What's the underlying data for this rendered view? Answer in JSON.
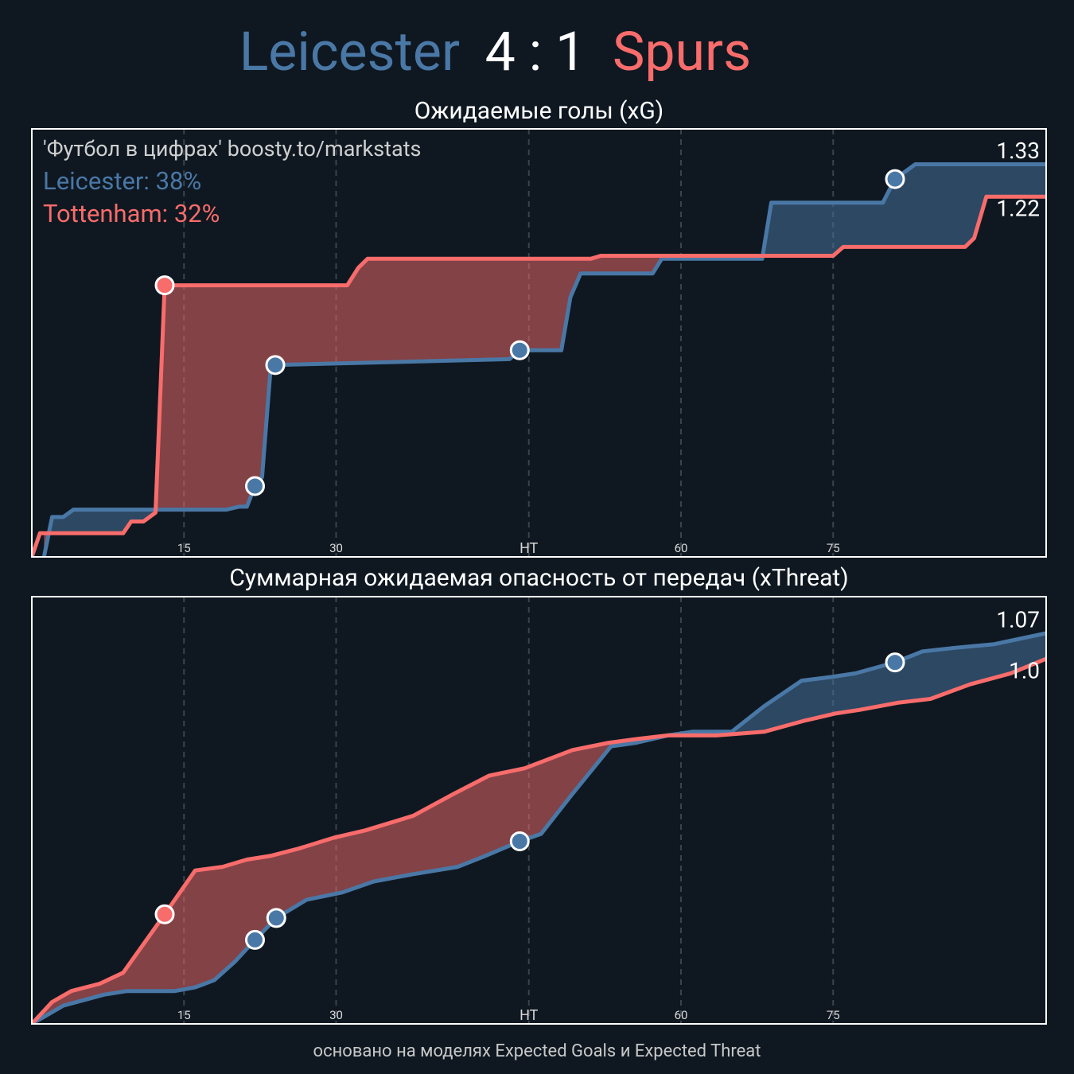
{
  "header": {
    "home": "Leicester",
    "score": "4 : 1",
    "away": "Spurs"
  },
  "footer": "основано на моделях Expected Goals и Expected Threat",
  "chart_data": [
    {
      "type": "line",
      "title": "Ожидаемые голы (xG)",
      "source": "'Футбол в цифрах' boosty.to/markstats",
      "annotations": [
        "Leicester: 38%",
        "Tottenham: 32%"
      ],
      "xlim": [
        0,
        100
      ],
      "ylim": [
        0,
        1.45
      ],
      "xticks": [
        15,
        30,
        {
          "value": 49,
          "label": "HT"
        },
        {
          "value": 64,
          "label": "60"
        },
        {
          "value": 79,
          "label": "75"
        }
      ],
      "grid": true,
      "series": [
        {
          "name": "Leicester",
          "color": "#4a78a6",
          "x": [
            1.2,
            2.0,
            3.1,
            4.1,
            19.2,
            20.4,
            21.2,
            22.0,
            22.7,
            23.5,
            24.0,
            47.1,
            48.1,
            52.2,
            53.1,
            54.1,
            61.2,
            62.1,
            72.0,
            72.9,
            83.9,
            85.1,
            87.1,
            100
          ],
          "values": [
            0,
            0.135,
            0.135,
            0.16,
            0.16,
            0.17,
            0.17,
            0.24,
            0.27,
            0.62,
            0.65,
            0.67,
            0.7,
            0.7,
            0.88,
            0.96,
            0.96,
            1.01,
            1.01,
            1.2,
            1.2,
            1.28,
            1.33,
            1.33
          ],
          "goal_x": [
            22.0,
            24.0,
            48.1,
            85.1
          ],
          "goal_values": [
            0.24,
            0.65,
            0.7,
            1.28
          ]
        },
        {
          "name": "Tottenham",
          "color": "#f86c6b",
          "x": [
            0,
            0.8,
            9.0,
            9.8,
            11.0,
            12.2,
            13.1,
            31.1,
            32.2,
            33.1,
            55.1,
            56.1,
            79.0,
            80.0,
            92.0,
            92.9,
            94.1,
            100
          ],
          "values": [
            0,
            0.08,
            0.08,
            0.12,
            0.12,
            0.15,
            0.92,
            0.92,
            0.98,
            1.01,
            1.01,
            1.02,
            1.02,
            1.05,
            1.05,
            1.08,
            1.22,
            1.22
          ],
          "goal_x": [
            13.1
          ],
          "goal_values": [
            0.92
          ]
        }
      ]
    },
    {
      "type": "line",
      "title": "Суммарная ожидаемая опасность от передач (xThreat)",
      "xlim": [
        0,
        100
      ],
      "ylim": [
        0,
        1.17
      ],
      "xticks": [
        15,
        30,
        {
          "value": 49,
          "label": "HT"
        },
        {
          "value": 64,
          "label": "60"
        },
        {
          "value": 79,
          "label": "75"
        }
      ],
      "grid": true,
      "series": [
        {
          "name": "Leicester",
          "color": "#4a78a6",
          "x": [
            0,
            3.1,
            7.1,
            9.4,
            14.1,
            16.1,
            18.0,
            20.0,
            22.0,
            24.1,
            27.1,
            30.6,
            33.7,
            37.6,
            42.0,
            44.7,
            48.1,
            50.2,
            53.3,
            57.1,
            59.6,
            62.7,
            65.1,
            69.0,
            72.2,
            75.9,
            78.8,
            81.2,
            85.1,
            87.8,
            91.0,
            94.9,
            100
          ],
          "values": [
            0,
            0.05,
            0.08,
            0.09,
            0.09,
            0.1,
            0.12,
            0.17,
            0.23,
            0.29,
            0.34,
            0.36,
            0.39,
            0.41,
            0.43,
            0.46,
            0.5,
            0.52,
            0.63,
            0.76,
            0.77,
            0.79,
            0.8,
            0.8,
            0.87,
            0.94,
            0.95,
            0.96,
            0.99,
            1.02,
            1.03,
            1.04,
            1.07
          ],
          "goal_x": [
            22.0,
            24.1,
            48.1,
            85.1
          ],
          "goal_values": [
            0.23,
            0.29,
            0.5,
            0.99
          ]
        },
        {
          "name": "Tottenham",
          "color": "#f86c6b",
          "x": [
            0,
            2.0,
            3.9,
            6.7,
            9.0,
            13.1,
            16.1,
            18.8,
            21.2,
            23.5,
            26.3,
            29.8,
            32.9,
            37.6,
            41.6,
            45.1,
            48.6,
            53.3,
            56.9,
            59.6,
            62.7,
            67.5,
            72.2,
            76.1,
            79.2,
            81.6,
            85.5,
            88.6,
            92.5,
            96.5,
            100
          ],
          "values": [
            0,
            0.06,
            0.09,
            0.11,
            0.14,
            0.3,
            0.42,
            0.43,
            0.45,
            0.46,
            0.48,
            0.51,
            0.53,
            0.57,
            0.63,
            0.68,
            0.7,
            0.75,
            0.77,
            0.78,
            0.79,
            0.79,
            0.8,
            0.83,
            0.85,
            0.86,
            0.88,
            0.89,
            0.93,
            0.96,
            1
          ],
          "value_labels": [
            null,
            null,
            null,
            null,
            null,
            null,
            null,
            null,
            null,
            null,
            null,
            null,
            null,
            null,
            null,
            null,
            null,
            null,
            null,
            null,
            null,
            null,
            null,
            null,
            null,
            null,
            null,
            null,
            null,
            null,
            "1.0"
          ],
          "goal_x": [
            13.1
          ],
          "goal_values": [
            0.3
          ]
        }
      ]
    }
  ]
}
